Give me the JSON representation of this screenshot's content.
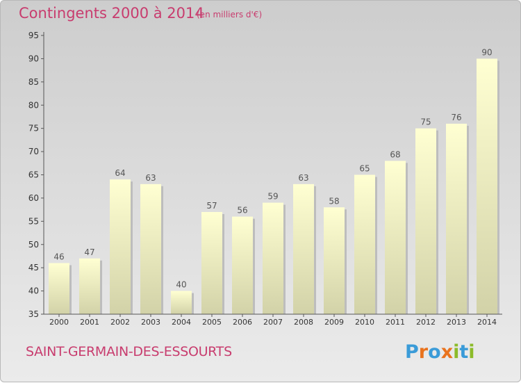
{
  "title": "Contingents 2000 à 2014",
  "subtitle": "(en milliers d'€)",
  "commune": "SAINT-GERMAIN-DES-ESSOURTS",
  "logo": {
    "text": "Proxiti",
    "letters": [
      "P",
      "r",
      "o",
      "x",
      "i",
      "t",
      "i"
    ],
    "colors": [
      "#3a9bd8",
      "#e9731e",
      "#3a9bd8",
      "#e9731e",
      "#8cbb2a",
      "#3a9bd8",
      "#8cbb2a"
    ]
  },
  "colors": {
    "accent": "#c83c6e",
    "bar_top": "#ffffd2",
    "bar_bottom": "#d2d2a8",
    "axis": "#555555"
  },
  "chart_data": {
    "type": "bar",
    "categories": [
      "2000",
      "2001",
      "2002",
      "2003",
      "2004",
      "2005",
      "2006",
      "2007",
      "2008",
      "2009",
      "2010",
      "2011",
      "2012",
      "2013",
      "2014"
    ],
    "values": [
      46,
      47,
      64,
      63,
      40,
      57,
      56,
      59,
      63,
      58,
      65,
      68,
      75,
      76,
      90
    ],
    "ylim": [
      35,
      95
    ],
    "yticks": [
      35,
      40,
      45,
      50,
      55,
      60,
      65,
      70,
      75,
      80,
      85,
      90,
      95
    ],
    "grid": false,
    "data_labels": true
  }
}
